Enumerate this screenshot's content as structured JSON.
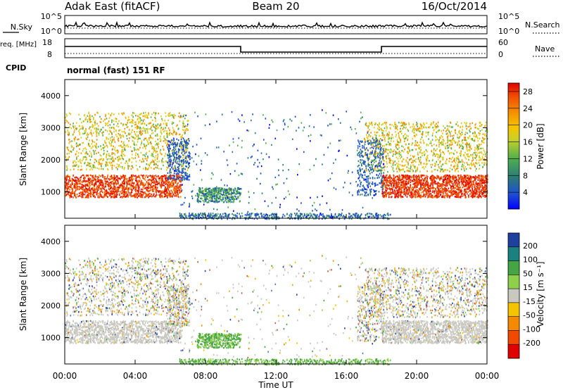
{
  "header": {
    "station": "Adak East (fitACF)",
    "beam": "Beam 20",
    "date": "16/Oct/2014"
  },
  "chart_data": [
    {
      "type": "line",
      "panel": "noise",
      "ylabel_left": "N.Sky",
      "ylabel_right": "N.Search",
      "yticks_left": [
        "10^5",
        "10^0"
      ],
      "yticks_right": [
        "10^5",
        "10^0"
      ],
      "series": []
    },
    {
      "type": "line",
      "panel": "frequency",
      "ylabel_left": "Freq. [MHz]",
      "ylabel_right": "Nave",
      "ylabel_cpid": "CPID",
      "yticks_left": [
        "18",
        "8"
      ],
      "yticks_right": [
        "60",
        "0"
      ],
      "cpid_label": "normal (fast) 151 RF",
      "frequency_steps": [
        {
          "x_start": "00:00",
          "x_end": "10:00",
          "level": "high"
        },
        {
          "x_start": "10:00",
          "x_end": "18:00",
          "level": "low"
        },
        {
          "x_start": "18:00",
          "x_end": "24:00",
          "level": "high"
        }
      ]
    },
    {
      "type": "heatmap",
      "panel": "power",
      "ylabel": "Slant Range [km]",
      "yticks": [
        "1000",
        "2000",
        "3000",
        "4000"
      ],
      "ylim": [
        180,
        4500
      ],
      "colorbar_label": "Power [dB]",
      "colorbar_ticks": [
        "4",
        "8",
        "12",
        "16",
        "20",
        "24",
        "28"
      ],
      "colorbar_colors": [
        "#0000ff",
        "#1f4fd0",
        "#2b7a78",
        "#4faf4f",
        "#c7d02a",
        "#f5c400",
        "#f58a00",
        "#f04a00",
        "#e00000"
      ],
      "xticks": [
        "00:00",
        "04:00",
        "08:00",
        "12:00",
        "16:00",
        "20:00",
        "00:00"
      ]
    },
    {
      "type": "heatmap",
      "panel": "velocity",
      "ylabel": "Slant Range [km]",
      "yticks": [
        "1000",
        "2000",
        "3000",
        "4000"
      ],
      "ylim": [
        180,
        4500
      ],
      "colorbar_label": "Velocity [m s⁻¹]",
      "colorbar_ticks": [
        "200",
        "100",
        "50",
        "15",
        "-15",
        "-50",
        "-100",
        "-200"
      ],
      "colorbar_colors": [
        "#2040a0",
        "#1a8080",
        "#45a545",
        "#8ed04a",
        "#c8c8c0",
        "#f5c400",
        "#f58a00",
        "#f04a00",
        "#e00000"
      ],
      "xticks": [
        "00:00",
        "04:00",
        "08:00",
        "12:00",
        "16:00",
        "20:00",
        "00:00"
      ],
      "xlabel": "Time UT"
    }
  ]
}
